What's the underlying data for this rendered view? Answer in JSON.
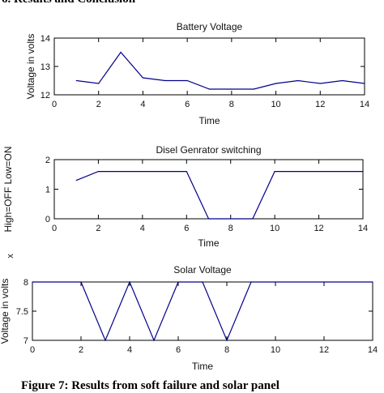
{
  "section_heading": "6. Results and Conclusion",
  "caption": "Figure 7: Results from soft failure and solar panel",
  "chart_data": [
    {
      "type": "line",
      "title": "Battery Voltage",
      "xlabel": "Time",
      "ylabel": "Voltage in volts",
      "xlim": [
        0,
        14
      ],
      "ylim": [
        12,
        14
      ],
      "xticks": [
        0,
        2,
        4,
        6,
        8,
        10,
        12,
        14
      ],
      "yticks": [
        12,
        13,
        14
      ],
      "grid": false,
      "line_color": "#00008b",
      "series": [
        {
          "x": [
            1,
            2,
            3,
            4,
            5,
            6,
            7,
            8,
            9,
            10,
            11,
            12,
            13,
            14
          ],
          "y": [
            12.5,
            12.4,
            13.5,
            12.6,
            12.5,
            12.5,
            12.2,
            12.2,
            12.2,
            12.4,
            12.5,
            12.4,
            12.5,
            12.4
          ]
        }
      ]
    },
    {
      "type": "line",
      "title": "Disel Genrator switching",
      "xlabel": "Time",
      "ylabel": "High=OFF Low=ON",
      "xlim": [
        0,
        14
      ],
      "ylim": [
        0,
        2
      ],
      "xticks": [
        0,
        2,
        4,
        6,
        8,
        10,
        12,
        14
      ],
      "yticks": [
        0,
        1,
        2
      ],
      "grid": false,
      "line_color": "#00008b",
      "series": [
        {
          "x": [
            1,
            2,
            6,
            7,
            9,
            10,
            14
          ],
          "y": [
            1.3,
            1.6,
            1.6,
            0,
            0,
            1.6,
            1.6
          ]
        }
      ]
    },
    {
      "type": "line",
      "title": "Solar Voltage",
      "xlabel": "Time",
      "ylabel": "Voltage in volts",
      "xlim": [
        0,
        14
      ],
      "ylim": [
        7,
        8
      ],
      "xticks": [
        0,
        2,
        4,
        6,
        8,
        10,
        12,
        14
      ],
      "yticks": [
        7,
        7.5,
        8
      ],
      "grid": false,
      "line_color": "#00008b",
      "series": [
        {
          "x": [
            0,
            2,
            3,
            4,
            5,
            6,
            7,
            8,
            9,
            14
          ],
          "y": [
            8,
            8,
            7,
            8,
            7,
            8,
            8,
            7,
            8,
            8
          ]
        }
      ]
    }
  ],
  "side_mark": "x"
}
